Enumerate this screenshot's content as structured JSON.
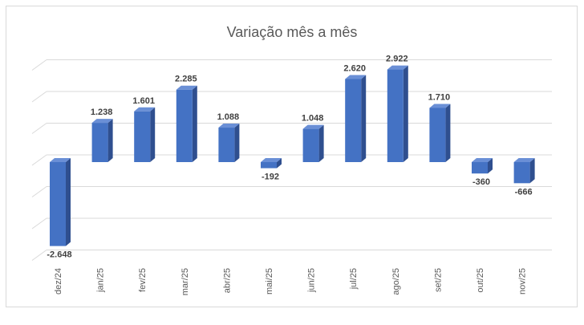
{
  "chart_data": {
    "type": "bar",
    "title": "Variação mês a mês",
    "categories": [
      "dez/24",
      "jan/25",
      "fev/25",
      "mar/25",
      "abr/25",
      "mai/25",
      "jun/25",
      "jul/25",
      "ago/25",
      "set/25",
      "out/25",
      "nov/25"
    ],
    "values": [
      -2648,
      1238,
      1601,
      2285,
      1088,
      -192,
      1048,
      2620,
      2922,
      1710,
      -360,
      -666
    ],
    "data_labels": [
      "-2.648",
      "1.238",
      "1.601",
      "2.285",
      "1.088",
      "-192",
      "1.048",
      "2.620",
      "2.922",
      "1.710",
      "-360",
      "-666"
    ],
    "ylim": [
      -3000,
      3000
    ],
    "grid": true,
    "style": "3d-column",
    "legend": "none",
    "colors": {
      "front": "#4472C4",
      "side": "#2F4F8F",
      "top": "#6A8FD6",
      "grid": "#d9d9d9",
      "text": "#404040"
    }
  }
}
